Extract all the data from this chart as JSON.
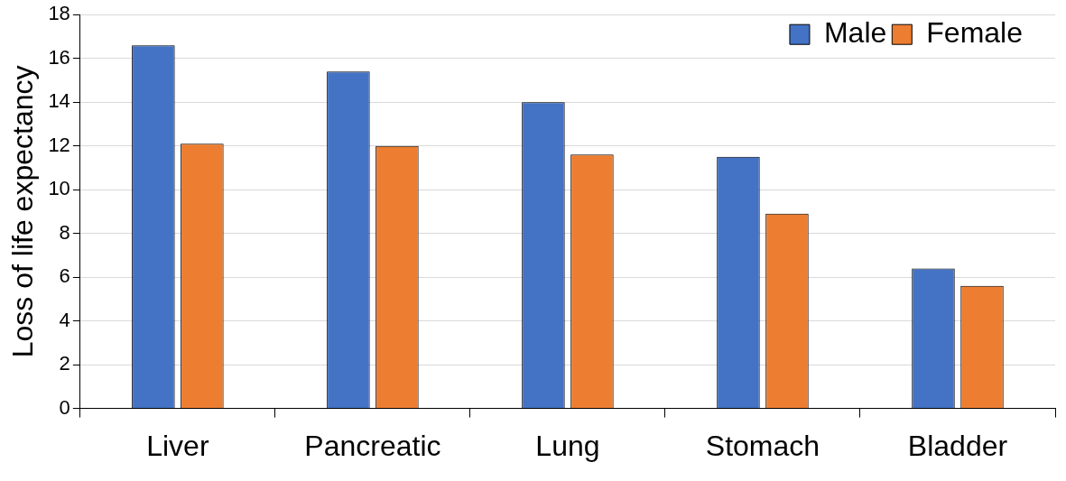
{
  "chart_data": {
    "type": "bar",
    "ylabel": "Loss of life expectancy",
    "categories": [
      "Liver",
      "Pancreatic",
      "Lung",
      "Stomach",
      "Bladder"
    ],
    "series": [
      {
        "name": "Male",
        "color": "#4472c4",
        "values": [
          16.6,
          15.4,
          14.0,
          11.5,
          6.4
        ]
      },
      {
        "name": "Female",
        "color": "#ed7d31",
        "values": [
          12.1,
          12.0,
          11.6,
          8.9,
          5.6
        ]
      }
    ],
    "ylim": [
      0,
      18
    ],
    "yticks": [
      0,
      2,
      4,
      6,
      8,
      10,
      12,
      14,
      16,
      18
    ],
    "grid": "y",
    "legend": "top right"
  }
}
